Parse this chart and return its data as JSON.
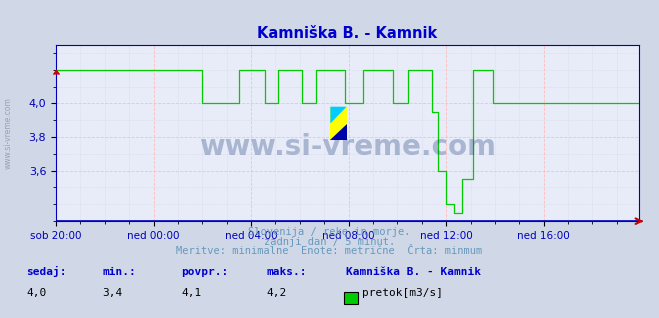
{
  "title": "Kamniška B. - Kamnik",
  "title_color": "#0000cc",
  "bg_color": "#d0d8e8",
  "plot_bg_color": "#e8ecf8",
  "line_color": "#00cc00",
  "axis_color": "#0000bb",
  "ylim": [
    3.3,
    4.35
  ],
  "ytick_positions": [
    3.6,
    3.8,
    4.0
  ],
  "ytick_labels": [
    "3,6",
    "3,8",
    "4,0"
  ],
  "xtick_labels": [
    "sob 20:00",
    "ned 00:00",
    "ned 04:00",
    "ned 08:00",
    "ned 12:00",
    "ned 16:00"
  ],
  "num_points": 288,
  "watermark": "www.si-vreme.com",
  "watermark_color": "#1a3a7a",
  "sub_text1": "Slovenija / reke in morje.",
  "sub_text2": "zadnji dan / 5 minut.",
  "sub_text3": "Meritve: minimalne  Enote: metrične  Črta: minmum",
  "sub_text_color": "#6699bb",
  "legend_label": "pretok[m3/s]",
  "legend_station": "Kamniška B. - Kamnik",
  "stats": {
    "sedaj": "4,0",
    "min": "3,4",
    "povpr": "4,1",
    "maks": "4,2"
  },
  "stats_label_color": "#0000cc",
  "stats_value_color": "#000000",
  "sidebar_text": "www.si-vreme.com",
  "sidebar_color": "#888899"
}
